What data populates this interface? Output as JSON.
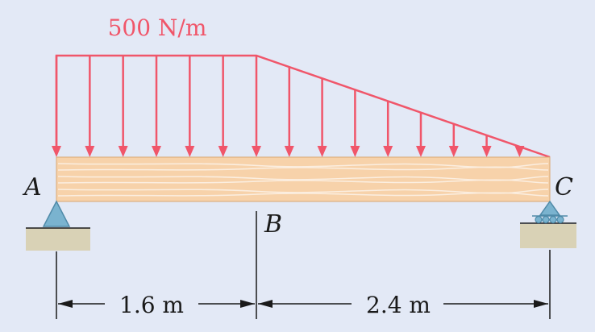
{
  "load": {
    "label": "500 N/m",
    "color": "#f0566a"
  },
  "points": {
    "a": "A",
    "b": "B",
    "c": "C"
  },
  "dimensions": {
    "ab": "1.6 m",
    "bc": "2.4 m"
  },
  "colors": {
    "background": "#e3e9f6",
    "beam": "#f7d2aa",
    "beam_grain": "#fbeee0",
    "support": "#7ab3cf",
    "ground": "#d9d2b6",
    "lines": "#1a1a1a"
  }
}
